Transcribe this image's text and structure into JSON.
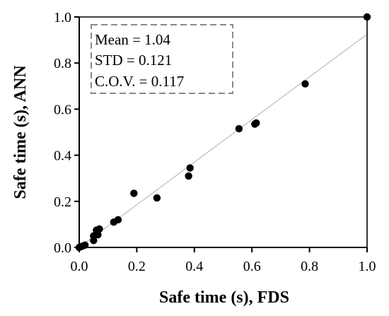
{
  "chart_data": {
    "type": "scatter",
    "xlabel": "Safe time (s), FDS",
    "ylabel": "Safe time (s), ANN",
    "xlim": [
      0.0,
      1.0
    ],
    "ylim": [
      0.0,
      1.0
    ],
    "x_ticks": [
      0.0,
      0.2,
      0.4,
      0.6,
      0.8,
      1.0
    ],
    "y_ticks": [
      0.0,
      0.2,
      0.4,
      0.6,
      0.8,
      1.0
    ],
    "x_tick_labels": [
      "0.0",
      "0.2",
      "0.4",
      "0.6",
      "0.8",
      "1.0"
    ],
    "y_tick_labels": [
      "0.0",
      "0.2",
      "0.4",
      "0.6",
      "0.8",
      "1.0"
    ],
    "grid": false,
    "legend": "none",
    "points": [
      {
        "x": 0.0,
        "y": 0.0
      },
      {
        "x": 0.01,
        "y": 0.005
      },
      {
        "x": 0.02,
        "y": 0.01
      },
      {
        "x": 0.05,
        "y": 0.03
      },
      {
        "x": 0.05,
        "y": 0.05
      },
      {
        "x": 0.06,
        "y": 0.06
      },
      {
        "x": 0.065,
        "y": 0.055
      },
      {
        "x": 0.06,
        "y": 0.075
      },
      {
        "x": 0.07,
        "y": 0.08
      },
      {
        "x": 0.12,
        "y": 0.11
      },
      {
        "x": 0.135,
        "y": 0.12
      },
      {
        "x": 0.19,
        "y": 0.235
      },
      {
        "x": 0.27,
        "y": 0.215
      },
      {
        "x": 0.38,
        "y": 0.31
      },
      {
        "x": 0.385,
        "y": 0.345
      },
      {
        "x": 0.555,
        "y": 0.515
      },
      {
        "x": 0.61,
        "y": 0.535
      },
      {
        "x": 0.615,
        "y": 0.54
      },
      {
        "x": 0.785,
        "y": 0.71
      },
      {
        "x": 1.0,
        "y": 1.0
      }
    ],
    "trend_line": {
      "x": [
        0.0,
        1.0
      ],
      "y": [
        0.0,
        0.925
      ]
    },
    "annotation_lines": [
      "Mean = 1.04",
      "STD = 0.121",
      "C.O.V. = 0.117"
    ],
    "colors": {
      "marker": "#000000",
      "axis": "#000000",
      "trend_line": "#b0b0b0",
      "annotation_border": "#8a8a8a"
    }
  }
}
